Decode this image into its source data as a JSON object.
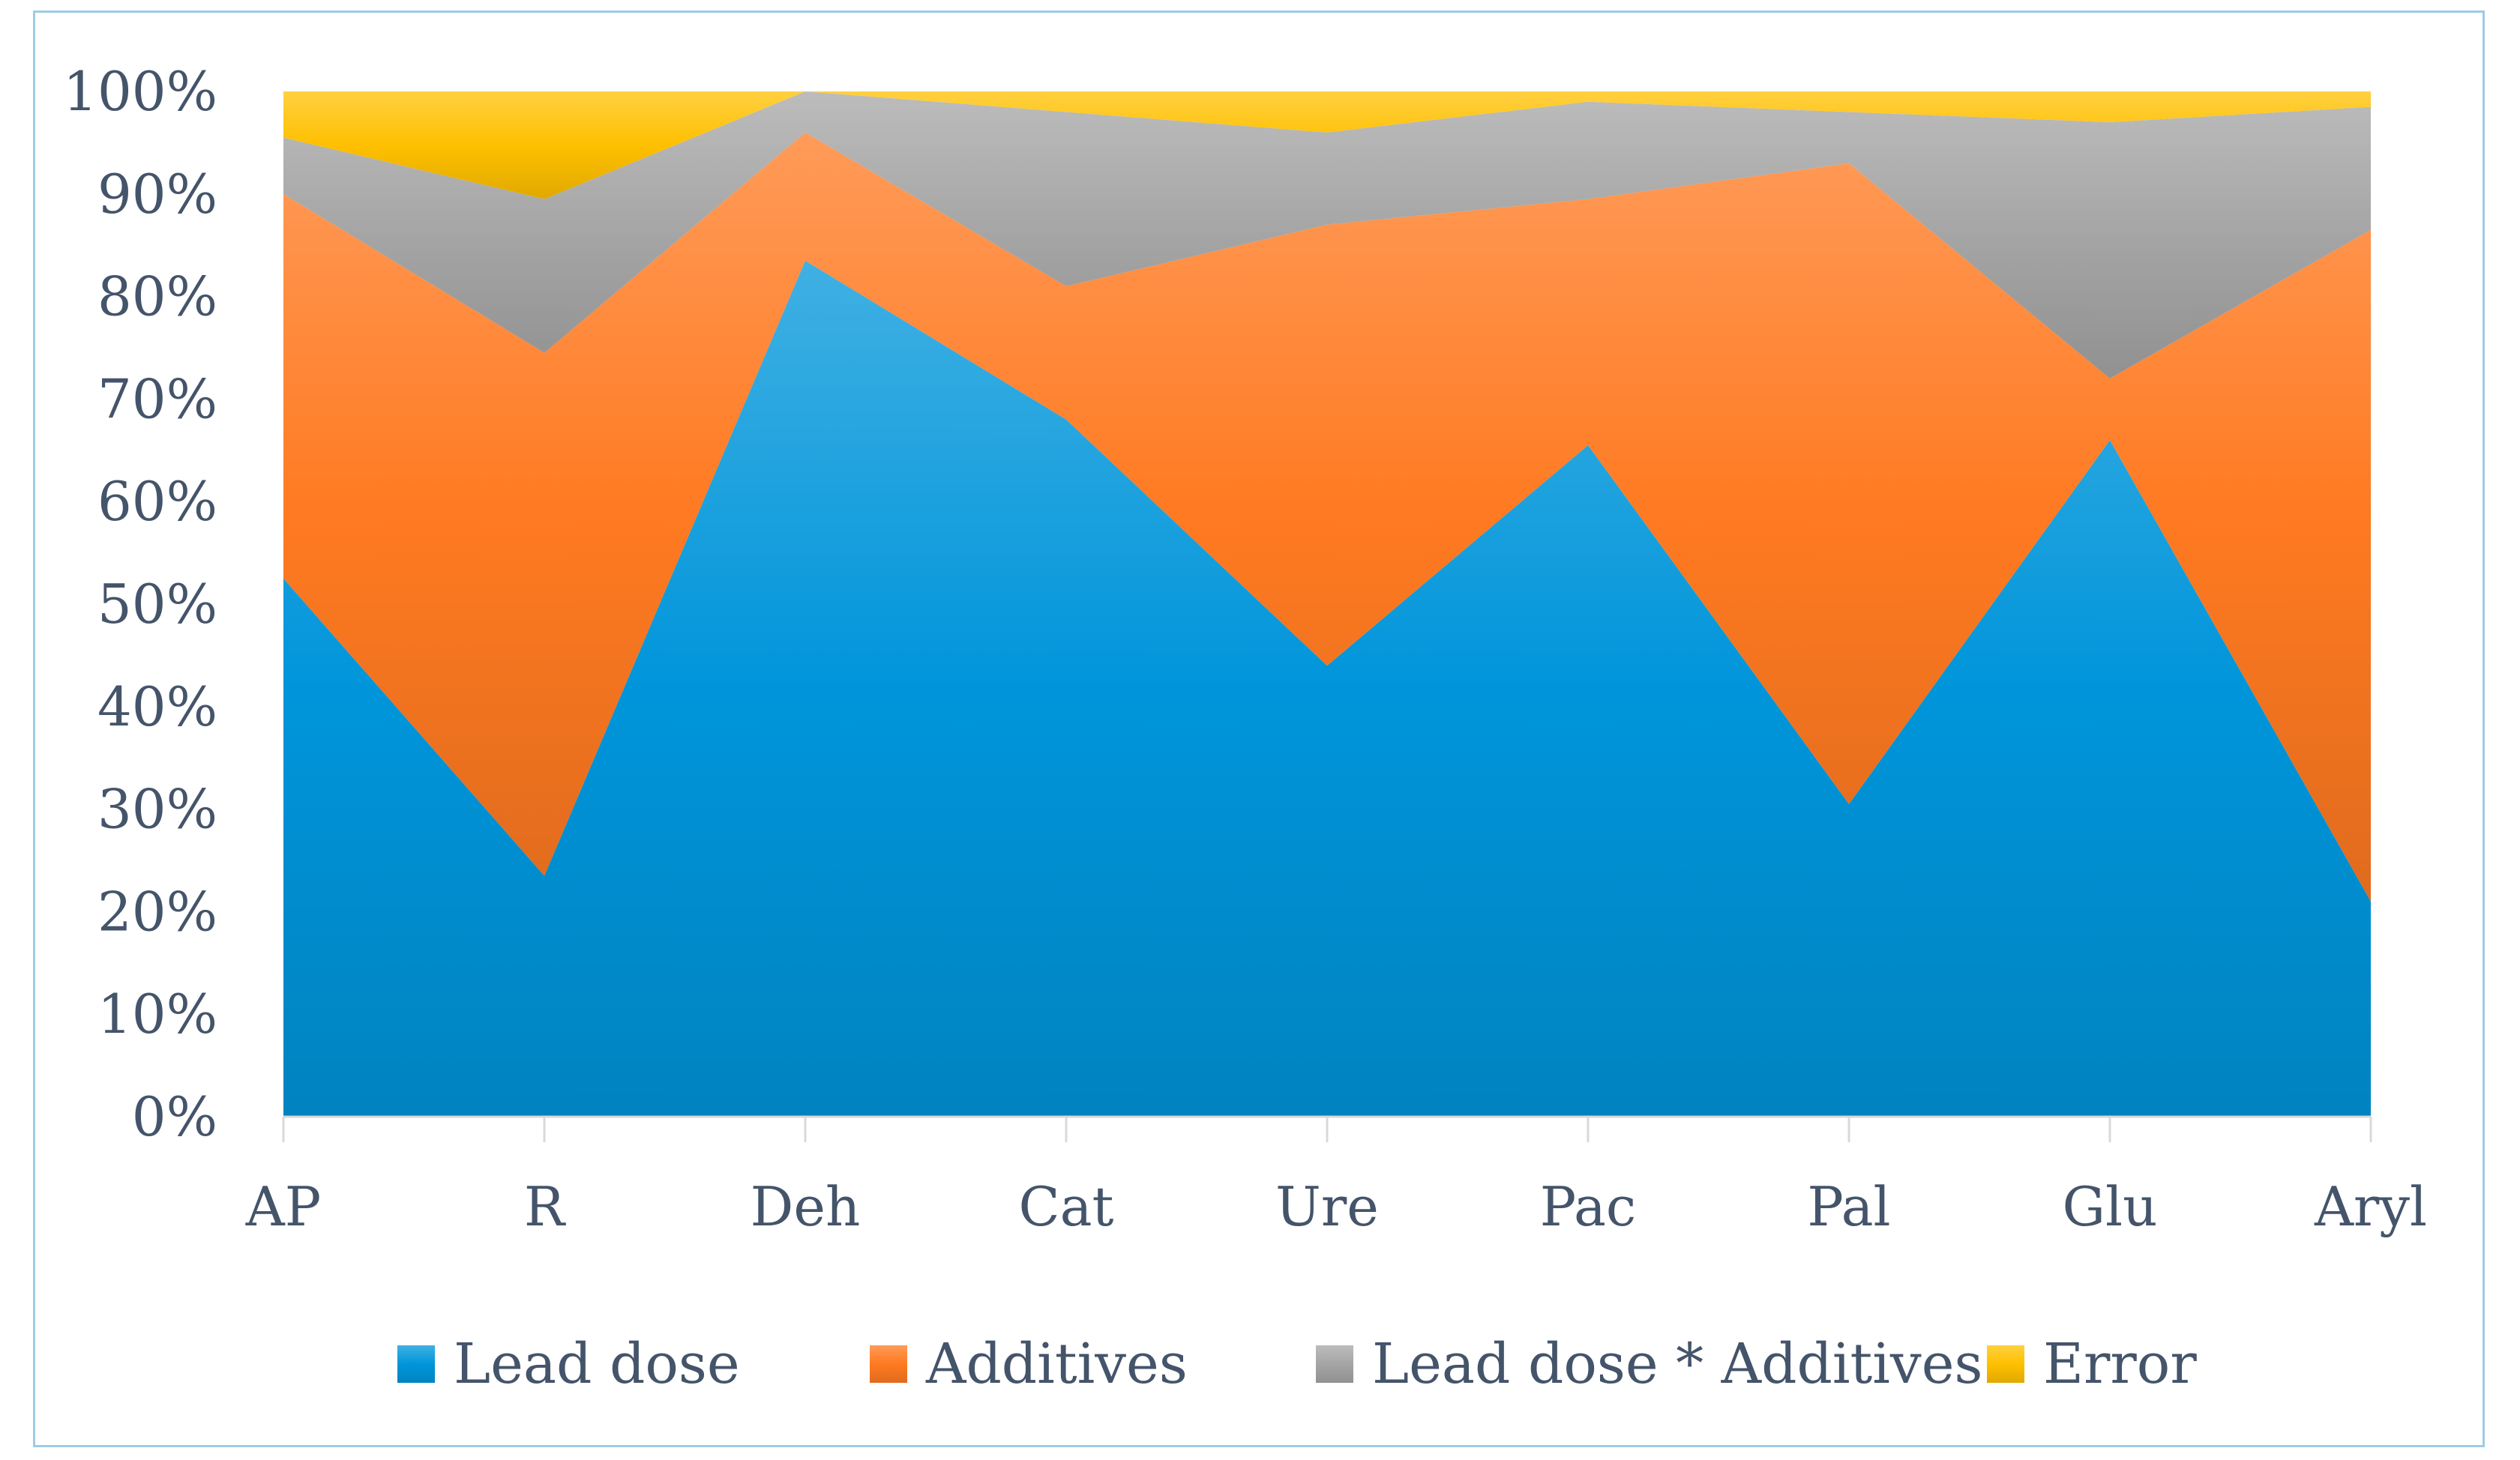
{
  "chart_data": {
    "type": "area",
    "stacked": "percent",
    "categories": [
      "AP",
      "R",
      "Deh",
      "Cat",
      "Ure",
      "Pac",
      "Pal",
      "Glu",
      "Aryl"
    ],
    "series": [
      {
        "name": "Lead dose",
        "color": "#0095da",
        "values": [
          52.5,
          23.5,
          83.5,
          68,
          44,
          65.5,
          30.5,
          66,
          21
        ]
      },
      {
        "name": "Additives",
        "color": "#ff7a21",
        "values": [
          37.5,
          51,
          12.5,
          13,
          43,
          24,
          62.5,
          6,
          65.5
        ]
      },
      {
        "name": "Lead dose * Additives",
        "color": "#a5a5a5",
        "values": [
          5.5,
          15,
          4,
          17,
          9,
          9.5,
          5,
          25,
          12
        ]
      },
      {
        "name": "Error",
        "color": "#ffc000",
        "values": [
          4.5,
          10.5,
          0,
          2,
          4,
          1,
          2,
          3,
          1.5
        ]
      }
    ],
    "ylim": [
      0,
      100
    ],
    "yticks": [
      "0%",
      "10%",
      "20%",
      "30%",
      "40%",
      "50%",
      "60%",
      "70%",
      "80%",
      "90%",
      "100%"
    ],
    "grid": false,
    "legend": "bottom"
  }
}
